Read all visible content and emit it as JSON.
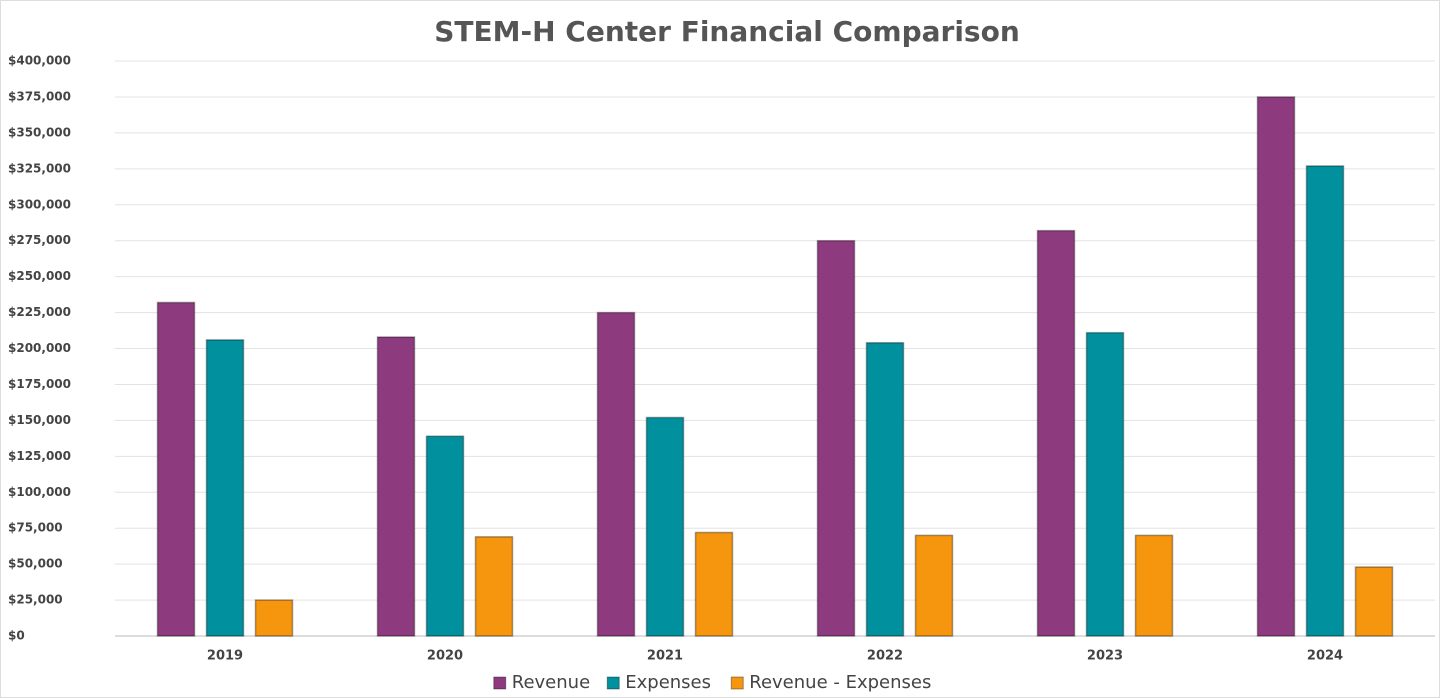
{
  "chart_data": {
    "type": "bar",
    "title": "STEM-H Center Financial Comparison",
    "categories": [
      "2019",
      "2020",
      "2021",
      "2022",
      "2023",
      "2024"
    ],
    "series": [
      {
        "name": "Revenue",
        "color": "#8e3a7f",
        "values": [
          232000,
          208000,
          225000,
          275000,
          282000,
          375000
        ]
      },
      {
        "name": "Expenses",
        "color": "#00909e",
        "values": [
          206000,
          139000,
          152000,
          204000,
          211000,
          327000
        ]
      },
      {
        "name": "Revenue - Expenses",
        "color": "#f6950e",
        "values": [
          25000,
          69000,
          72000,
          70000,
          70000,
          48000
        ]
      }
    ],
    "ylim": [
      0,
      400000
    ],
    "yticks": [
      {
        "value": 0,
        "label": "$0"
      },
      {
        "value": 25000,
        "label": "$25,000"
      },
      {
        "value": 50000,
        "label": "$50,000"
      },
      {
        "value": 75000,
        "label": "$75,000"
      },
      {
        "value": 100000,
        "label": "$100,000"
      },
      {
        "value": 125000,
        "label": "$125,000"
      },
      {
        "value": 150000,
        "label": "$150,000"
      },
      {
        "value": 175000,
        "label": "$175,000"
      },
      {
        "value": 200000,
        "label": "$200,000"
      },
      {
        "value": 225000,
        "label": "$225,000"
      },
      {
        "value": 250000,
        "label": "$250,000"
      },
      {
        "value": 275000,
        "label": "$275,000"
      },
      {
        "value": 300000,
        "label": "$300,000"
      },
      {
        "value": 325000,
        "label": "$325,000"
      },
      {
        "value": 350000,
        "label": "$350,000"
      },
      {
        "value": 375000,
        "label": "$375,000"
      },
      {
        "value": 400000,
        "label": "$400,000"
      }
    ],
    "grid": true,
    "legend": "bottom"
  }
}
